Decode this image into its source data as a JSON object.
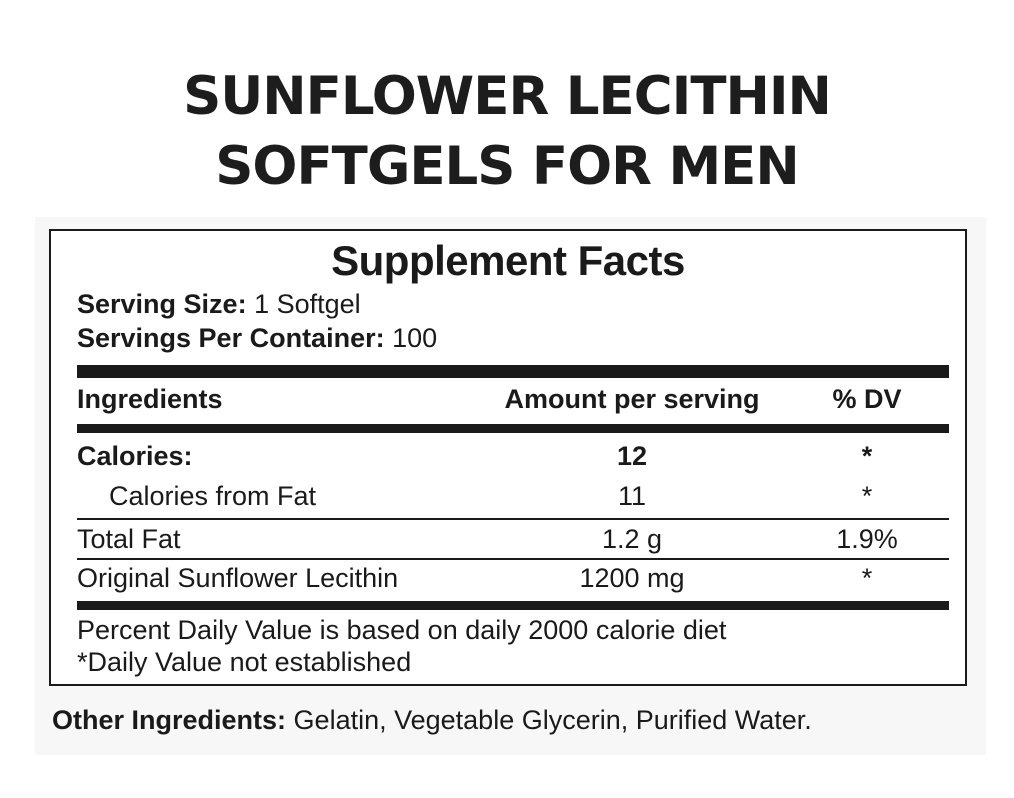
{
  "heading": {
    "line1": "SUNFLOWER LECITHIN",
    "line2": "SOFTGELS FOR MEN"
  },
  "facts": {
    "title": "Supplement Facts",
    "serving_size_label": "Serving Size:",
    "serving_size_value": "1 Softgel",
    "servings_per_container_label": "Servings Per Container:",
    "servings_per_container_value": "100",
    "columns": {
      "ingredients": "Ingredients",
      "amount": "Amount per serving",
      "dv": "% DV"
    },
    "rows": [
      {
        "name": "Calories:",
        "amount": "12",
        "dv": "*"
      },
      {
        "name": "Calories from Fat",
        "amount": "11",
        "dv": "*"
      },
      {
        "name": "Total Fat",
        "amount": "1.2 g",
        "dv": "1.9%"
      },
      {
        "name": "Original Sunflower Lecithin",
        "amount": "1200 mg",
        "dv": "*"
      }
    ],
    "footnote1": "Percent Daily Value is based on daily 2000 calorie diet",
    "footnote2": "*Daily Value not established"
  },
  "other_ingredients": {
    "label": "Other Ingredients:",
    "value": "Gelatin, Vegetable Glycerin, Purified Water."
  }
}
